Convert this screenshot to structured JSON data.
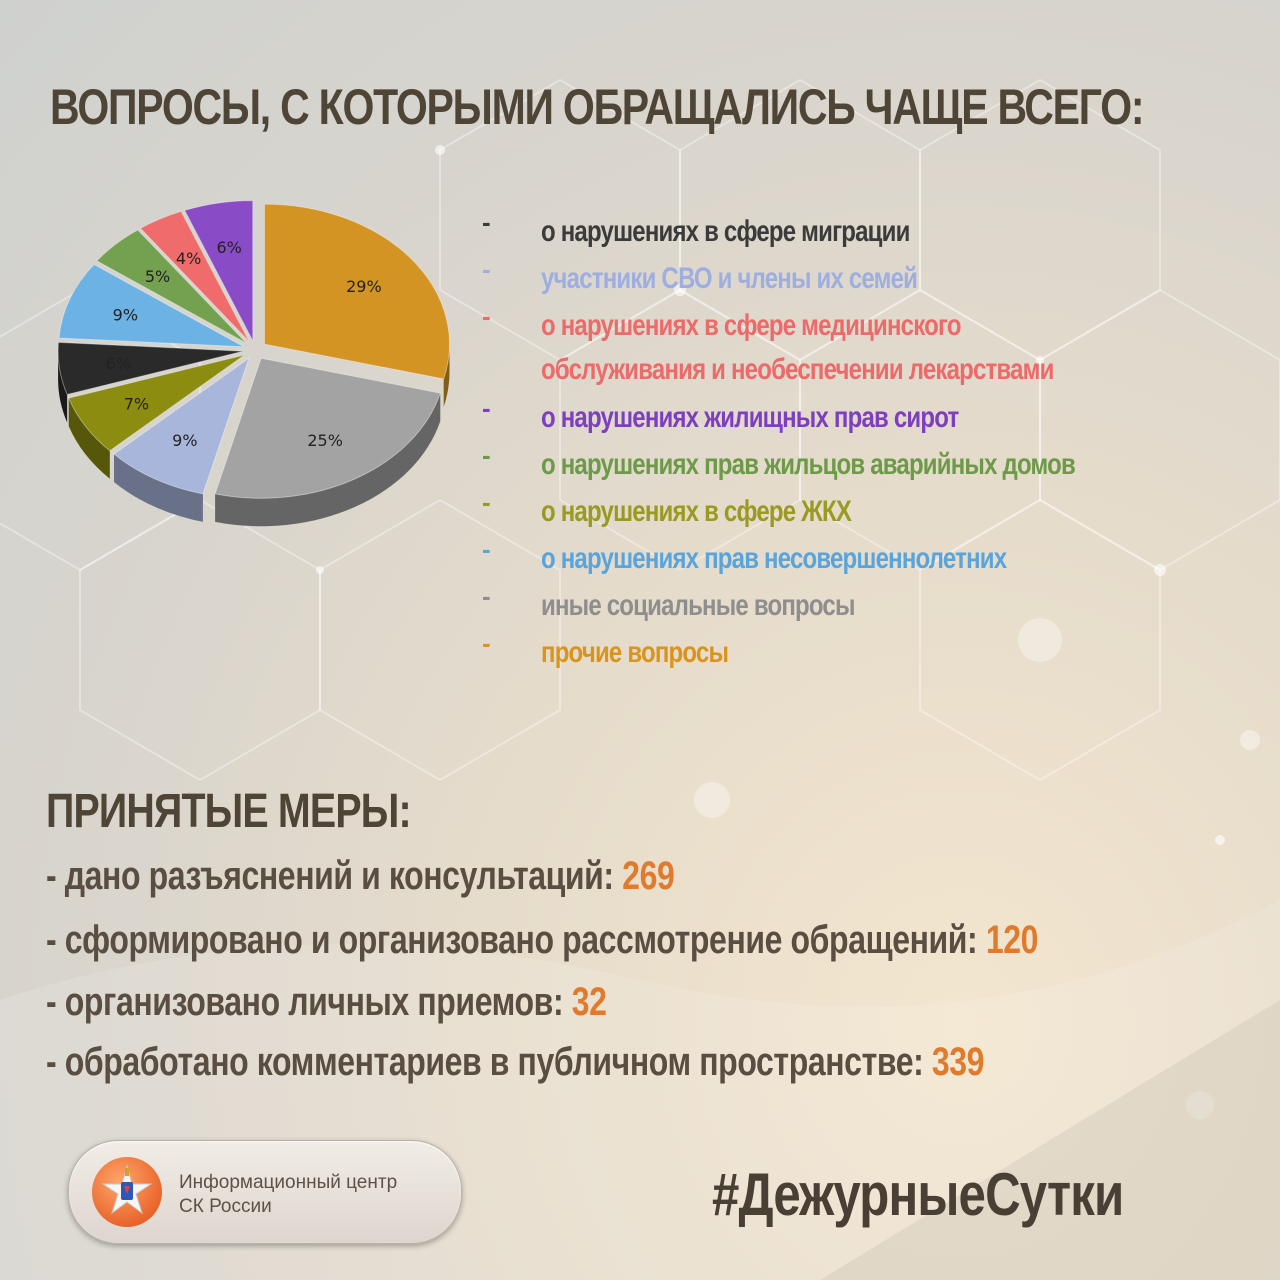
{
  "title": "ВОПРОСЫ, С КОТОРЫМИ ОБРАЩАЛИСЬ ЧАЩЕ ВСЕГО:",
  "chart_data": {
    "type": "pie",
    "slices": [
      {
        "name": "прочие вопросы",
        "value": 29,
        "label": "29%",
        "color": "#d49424"
      },
      {
        "name": "иные социальные вопросы",
        "value": 25,
        "label": "25%",
        "color": "#a3a3a3"
      },
      {
        "name": "участники СВО и члены их семей",
        "value": 9,
        "label": "9%",
        "color": "#a9b6dc"
      },
      {
        "name": "о нарушениях в сфере ЖКХ",
        "value": 7,
        "label": "7%",
        "color": "#8c8c10"
      },
      {
        "name": "о нарушениях в сфере миграции",
        "value": 6,
        "label": "6%",
        "color": "#2a2a2a"
      },
      {
        "name": "о нарушениях прав несовершеннолетних",
        "value": 9,
        "label": "9%",
        "color": "#6cb2e4"
      },
      {
        "name": "о нарушениях прав жильцов аварийных домов",
        "value": 5,
        "label": "5%",
        "color": "#73a150"
      },
      {
        "name": "о нарушениях в сфере медицинского обслуживания и необеспечении лекарствами",
        "value": 4,
        "label": "4%",
        "color": "#f06b6b"
      },
      {
        "name": "о нарушениях жилищных прав сирот",
        "value": 6,
        "label": "6%",
        "color": "#8a4bc6"
      }
    ]
  },
  "legend": [
    {
      "line1": "о нарушениях в сфере миграции",
      "line2": "",
      "color": "#3b3b3b"
    },
    {
      "line1": "участники СВО и члены их семей",
      "line2": "",
      "color": "#9eaee0"
    },
    {
      "line1": "о нарушениях в сфере медицинского",
      "line2": "обслуживания и необеспечении лекарствами",
      "color": "#ec6a6a"
    },
    {
      "line1": "о нарушениях жилищных прав сирот",
      "line2": "",
      "color": "#7d3fbf"
    },
    {
      "line1": "о нарушениях прав жильцов аварийных домов",
      "line2": "",
      "color": "#6d9a48"
    },
    {
      "line1": "о нарушениях в сфере ЖКХ",
      "line2": "",
      "color": "#9a9a22"
    },
    {
      "line1": "о нарушениях прав несовершеннолетних",
      "line2": "",
      "color": "#5aa4dc"
    },
    {
      "line1": "иные социальные вопросы",
      "line2": "",
      "color": "#8e8e8e"
    },
    {
      "line1": "прочие вопросы",
      "line2": "",
      "color": "#d99420"
    }
  ],
  "legend_dash": "-",
  "measures": {
    "title": "ПРИНЯТЫЕ МЕРЫ:",
    "items": [
      {
        "label": "- дано разъяснений и консультаций:",
        "value": "269"
      },
      {
        "label": "- сформировано и организовано рассмотрение обращений:",
        "value": "120"
      },
      {
        "label": "- организовано личных приемов:",
        "value": "32"
      },
      {
        "label": "- обработано комментариев в публичном пространстве:",
        "value": "339"
      }
    ]
  },
  "logo": {
    "line1": "Информационный центр",
    "line2": "СК России",
    "emblem": "sk-emblem-icon"
  },
  "hashtag": "#ДежурныеСутки"
}
